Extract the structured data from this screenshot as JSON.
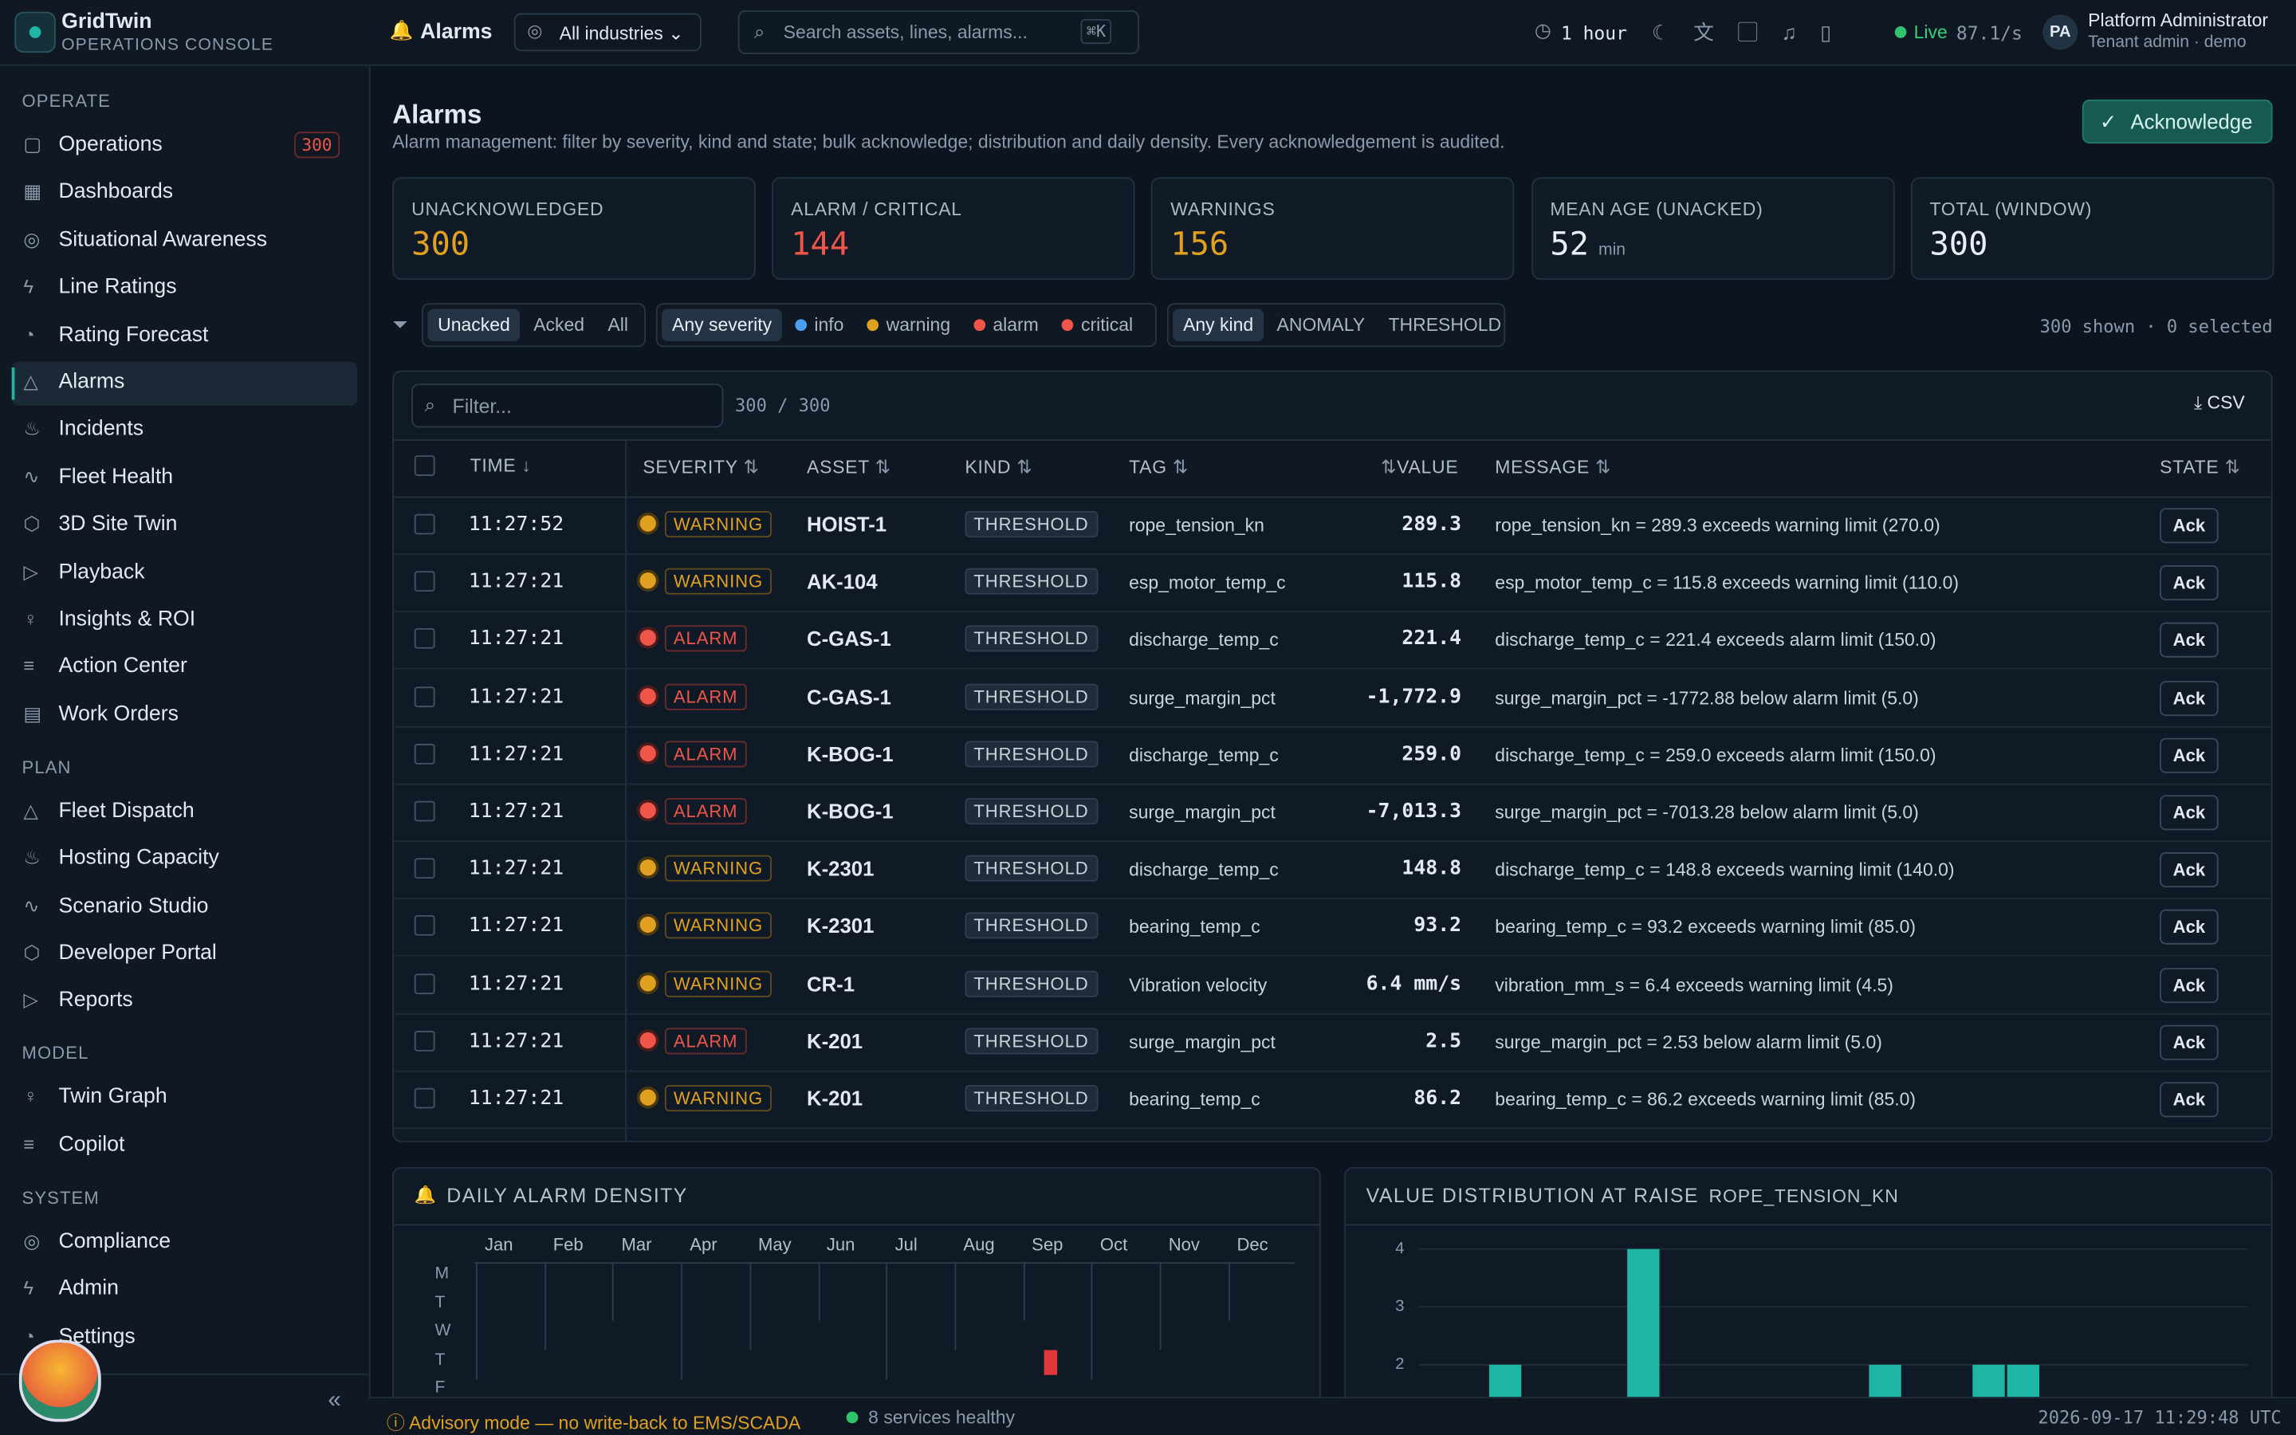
{
  "sidebar": {
    "brand": "GridTwin",
    "subtitle": "OPERATIONS CONSOLE",
    "sections": [
      {
        "title": "OPERATE",
        "items": [
          {
            "label": "Operations",
            "badge": "300"
          },
          {
            "label": "Dashboards"
          },
          {
            "label": "Situational Awareness"
          },
          {
            "label": "Line Ratings"
          },
          {
            "label": "Rating Forecast"
          },
          {
            "label": "Alarms"
          },
          {
            "label": "Incidents"
          },
          {
            "label": "Fleet Health"
          },
          {
            "label": "3D Site Twin"
          },
          {
            "label": "Playback"
          },
          {
            "label": "Insights & ROI"
          },
          {
            "label": "Action Center"
          },
          {
            "label": "Work Orders"
          }
        ]
      },
      {
        "title": "PLAN",
        "items": [
          {
            "label": "Fleet Dispatch"
          },
          {
            "label": "Hosting Capacity"
          },
          {
            "label": "Scenario Studio"
          },
          {
            "label": "Developer Portal"
          },
          {
            "label": "Reports"
          }
        ]
      },
      {
        "title": "MODEL",
        "items": [
          {
            "label": "Twin Graph"
          },
          {
            "label": "Copilot"
          }
        ]
      },
      {
        "title": "SYSTEM",
        "items": [
          {
            "label": "Compliance"
          },
          {
            "label": "Admin"
          },
          {
            "label": "Settings"
          }
        ]
      }
    ]
  },
  "topbar": {
    "page": "Alarms",
    "industry": "All industries",
    "search": "Search assets, lines, alarms...",
    "shortcut": "⌘K",
    "range": "1 hour",
    "live": "Live",
    "rate": "87.1/s",
    "initials": "PA",
    "user": "Platform Administrator",
    "role": "Tenant admin · demo"
  },
  "header": {
    "title": "Alarms",
    "description": "Alarm management: filter by severity, kind and state; bulk acknowledge; distribution and daily density. Every acknowledgement is audited.",
    "button": "Acknowledge"
  },
  "kpis": [
    {
      "label": "UNACKNOWLEDGED",
      "value": "300"
    },
    {
      "label": "ALARM / CRITICAL",
      "value": "144"
    },
    {
      "label": "WARNINGS",
      "value": "156"
    },
    {
      "label": "MEAN AGE (UNACKED)",
      "value": "52",
      "unit": "min"
    },
    {
      "label": "TOTAL (WINDOW)",
      "value": "300"
    }
  ],
  "filters": {
    "state": [
      "Unacked",
      "Acked",
      "All"
    ],
    "severity": [
      "Any severity",
      "info",
      "warning",
      "alarm",
      "critical"
    ],
    "kind": [
      "Any kind",
      "ANOMALY",
      "THRESHOLD"
    ],
    "summary": "300 shown · 0 selected"
  },
  "table": {
    "filter": "Filter...",
    "count": "300 / 300",
    "export": "CSV",
    "columns": [
      "TIME",
      "SEVERITY",
      "ASSET",
      "KIND",
      "TAG",
      "VALUE",
      "MESSAGE",
      "STATE"
    ],
    "rows": [
      {
        "time": "11:27:52",
        "severity": "WARNING",
        "asset": "HOIST-1",
        "kind": "THRESHOLD",
        "tag": "rope_tension_kn",
        "value": "289.3",
        "message": "rope_tension_kn = 289.3 exceeds warning limit (270.0)",
        "state": "Ack"
      },
      {
        "time": "11:27:21",
        "severity": "WARNING",
        "asset": "AK-104",
        "kind": "THRESHOLD",
        "tag": "esp_motor_temp_c",
        "value": "115.8",
        "message": "esp_motor_temp_c = 115.8 exceeds warning limit (110.0)",
        "state": "Ack"
      },
      {
        "time": "11:27:21",
        "severity": "ALARM",
        "asset": "C-GAS-1",
        "kind": "THRESHOLD",
        "tag": "discharge_temp_c",
        "value": "221.4",
        "message": "discharge_temp_c = 221.4 exceeds alarm limit (150.0)",
        "state": "Ack"
      },
      {
        "time": "11:27:21",
        "severity": "ALARM",
        "asset": "C-GAS-1",
        "kind": "THRESHOLD",
        "tag": "surge_margin_pct",
        "value": "-1,772.9",
        "message": "surge_margin_pct = -1772.88 below alarm limit (5.0)",
        "state": "Ack"
      },
      {
        "time": "11:27:21",
        "severity": "ALARM",
        "asset": "K-BOG-1",
        "kind": "THRESHOLD",
        "tag": "discharge_temp_c",
        "value": "259.0",
        "message": "discharge_temp_c = 259.0 exceeds alarm limit (150.0)",
        "state": "Ack"
      },
      {
        "time": "11:27:21",
        "severity": "ALARM",
        "asset": "K-BOG-1",
        "kind": "THRESHOLD",
        "tag": "surge_margin_pct",
        "value": "-7,013.3",
        "message": "surge_margin_pct = -7013.28 below alarm limit (5.0)",
        "state": "Ack"
      },
      {
        "time": "11:27:21",
        "severity": "WARNING",
        "asset": "K-2301",
        "kind": "THRESHOLD",
        "tag": "discharge_temp_c",
        "value": "148.8",
        "message": "discharge_temp_c = 148.8 exceeds warning limit (140.0)",
        "state": "Ack"
      },
      {
        "time": "11:27:21",
        "severity": "WARNING",
        "asset": "K-2301",
        "kind": "THRESHOLD",
        "tag": "bearing_temp_c",
        "value": "93.2",
        "message": "bearing_temp_c = 93.2 exceeds warning limit (85.0)",
        "state": "Ack"
      },
      {
        "time": "11:27:21",
        "severity": "WARNING",
        "asset": "CR-1",
        "kind": "THRESHOLD",
        "tag": "Vibration velocity",
        "value": "6.4 mm/s",
        "message": "vibration_mm_s = 6.4 exceeds warning limit (4.5)",
        "state": "Ack"
      },
      {
        "time": "11:27:21",
        "severity": "ALARM",
        "asset": "K-201",
        "kind": "THRESHOLD",
        "tag": "surge_margin_pct",
        "value": "2.5",
        "message": "surge_margin_pct = 2.53 below alarm limit (5.0)",
        "state": "Ack"
      },
      {
        "time": "11:27:21",
        "severity": "WARNING",
        "asset": "K-201",
        "kind": "THRESHOLD",
        "tag": "bearing_temp_c",
        "value": "86.2",
        "message": "bearing_temp_c = 86.2 exceeds warning limit (85.0)",
        "state": "Ack"
      }
    ]
  },
  "density": {
    "title": "DAILY ALARM DENSITY",
    "months": [
      "Jan",
      "Feb",
      "Mar",
      "Apr",
      "May",
      "Jun",
      "Jul",
      "Aug",
      "Sep",
      "Oct",
      "Nov",
      "Dec"
    ],
    "days": [
      "M",
      "T",
      "W",
      "T",
      "F"
    ]
  },
  "chart_data": {
    "type": "bar",
    "title": "VALUE DISTRIBUTION AT RAISE",
    "subtitle": "ROPE_TENSION_KN",
    "categories": [
      null,
      null,
      null,
      null,
      null,
      null,
      null,
      null,
      null,
      null,
      null,
      null,
      null,
      null,
      null,
      null,
      null,
      null,
      null,
      null,
      null,
      null,
      null,
      null
    ],
    "values": [
      0,
      0,
      2,
      0,
      0,
      0,
      4,
      0,
      0,
      0,
      0,
      0,
      0,
      2,
      0,
      0,
      2,
      2,
      0,
      0,
      0,
      0,
      0,
      0
    ],
    "color": "#1fb5a5",
    "ylim": [
      0,
      4
    ],
    "yticks": [
      2,
      3,
      4
    ],
    "grid": true
  },
  "footer": {
    "advisory": "Advisory mode — no write-back to EMS/SCADA",
    "services": "8 services healthy",
    "timestamp": "2026-09-17 11:29:48 UTC"
  }
}
